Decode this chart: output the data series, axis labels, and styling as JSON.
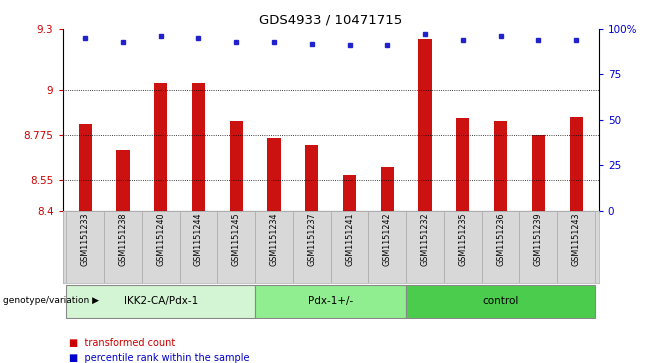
{
  "title": "GDS4933 / 10471715",
  "samples": [
    "GSM1151233",
    "GSM1151238",
    "GSM1151240",
    "GSM1151244",
    "GSM1151245",
    "GSM1151234",
    "GSM1151237",
    "GSM1151241",
    "GSM1151242",
    "GSM1151232",
    "GSM1151235",
    "GSM1151236",
    "GSM1151239",
    "GSM1151243"
  ],
  "transformed_counts": [
    8.83,
    8.7,
    9.03,
    9.03,
    8.845,
    8.76,
    8.725,
    8.575,
    8.615,
    9.25,
    8.86,
    8.845,
    8.775,
    8.865
  ],
  "percentile_ranks": [
    95,
    93,
    96,
    95,
    93,
    93,
    92,
    91,
    91,
    97,
    94,
    96,
    94,
    94
  ],
  "groups": [
    {
      "label": "IKK2-CA/Pdx-1",
      "start": 0,
      "end": 4,
      "color": "#d4f5d4"
    },
    {
      "label": "Pdx-1+/-",
      "start": 5,
      "end": 8,
      "color": "#90ee90"
    },
    {
      "label": "control",
      "start": 9,
      "end": 13,
      "color": "#4ccc4c"
    }
  ],
  "ylim_left": [
    8.4,
    9.3
  ],
  "yticks_left": [
    8.4,
    8.55,
    8.775,
    9.0,
    9.3
  ],
  "ytick_labels_left": [
    "8.4",
    "8.55",
    "8.775",
    "9",
    "9.3"
  ],
  "yticks_right": [
    0,
    25,
    50,
    75,
    100
  ],
  "ytick_labels_right": [
    "0",
    "25",
    "50",
    "75",
    "100%"
  ],
  "bar_color": "#cc1111",
  "dot_color": "#2222cc",
  "bar_width": 0.35,
  "legend_labels": [
    "transformed count",
    "percentile rank within the sample"
  ],
  "legend_colors": [
    "#cc0000",
    "#0000cc"
  ],
  "group_label_prefix": "genotype/variation",
  "bg_color": "#d8d8d8",
  "plot_bg": "#ffffff",
  "grid_ticks": [
    8.55,
    8.775,
    9.0
  ]
}
